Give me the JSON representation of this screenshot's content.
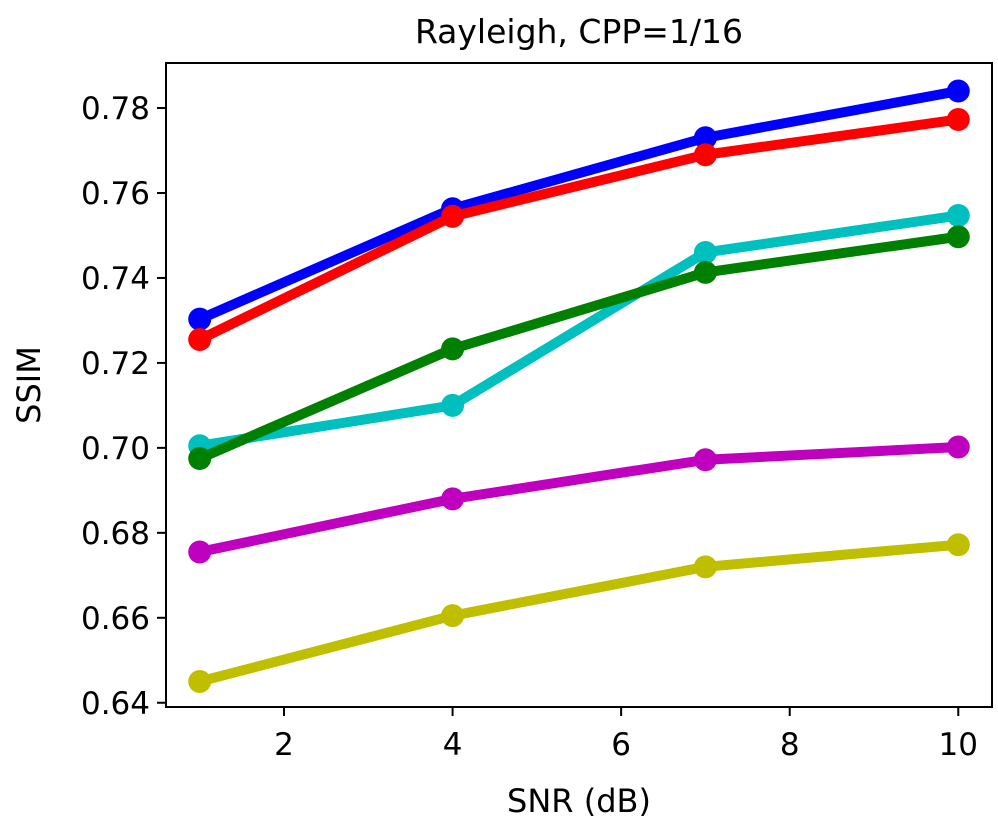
{
  "chart_data": {
    "type": "line",
    "title": "Rayleigh, CPP=1/16",
    "xlabel": "SNR (dB)",
    "ylabel": "SSIM",
    "xlim": [
      0.6,
      10.4
    ],
    "ylim": [
      0.639,
      0.7906
    ],
    "xticks": [
      2,
      4,
      6,
      8,
      10
    ],
    "xtick_labels": [
      "2",
      "4",
      "6",
      "8",
      "10"
    ],
    "yticks": [
      0.64,
      0.66,
      0.68,
      0.7,
      0.72,
      0.74,
      0.76,
      0.78
    ],
    "ytick_labels": [
      "0.64",
      "0.66",
      "0.68",
      "0.70",
      "0.72",
      "0.74",
      "0.76",
      "0.78"
    ],
    "x": [
      1,
      4,
      7,
      10
    ],
    "series": [
      {
        "name": "blue",
        "color": "#0000ff",
        "values": [
          0.7303,
          0.7563,
          0.773,
          0.784
        ]
      },
      {
        "name": "red",
        "color": "#ff0000",
        "values": [
          0.7255,
          0.7545,
          0.769,
          0.7773
        ]
      },
      {
        "name": "cyan",
        "color": "#00bfbf",
        "values": [
          0.7005,
          0.71,
          0.746,
          0.7547
        ]
      },
      {
        "name": "green",
        "color": "#008000",
        "values": [
          0.6975,
          0.7233,
          0.7413,
          0.7497
        ]
      },
      {
        "name": "magenta",
        "color": "#bf00bf",
        "values": [
          0.6755,
          0.688,
          0.6972,
          0.7002
        ]
      },
      {
        "name": "olive",
        "color": "#bfbf00",
        "values": [
          0.645,
          0.6605,
          0.672,
          0.6772
        ]
      }
    ]
  }
}
